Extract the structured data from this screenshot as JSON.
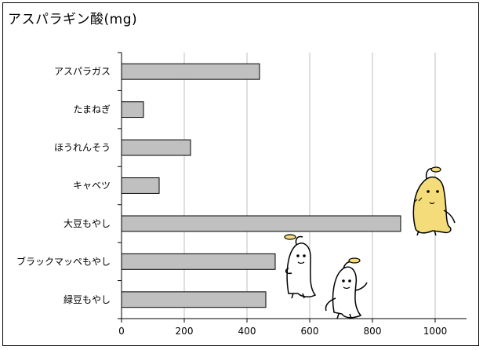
{
  "chart_data": {
    "type": "bar",
    "orientation": "horizontal",
    "title": "アスパラギン酸(mg)",
    "categories": [
      "アスパラガス",
      "たまねぎ",
      "ほうれんそう",
      "キャベツ",
      "大豆もやし",
      "ブラックマッペもやし",
      "緑豆もやし"
    ],
    "values": [
      440,
      70,
      220,
      120,
      890,
      490,
      460
    ],
    "xlim": [
      0,
      1100
    ],
    "xticks": [
      0,
      200,
      400,
      600,
      800,
      1000
    ],
    "grid": true,
    "bar_color": "#c0c0c0",
    "bar_edge_color": "#000000",
    "grid_color": "#bfbfbf"
  }
}
